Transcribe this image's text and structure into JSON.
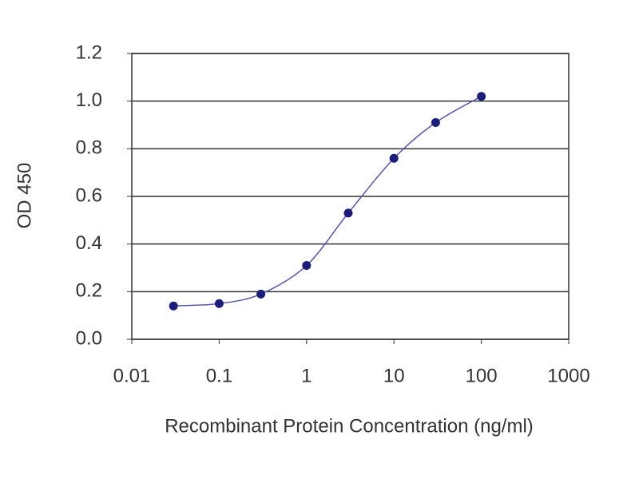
{
  "chart_data": {
    "type": "line",
    "xlabel": "Recombinant Protein Concentration (ng/ml)",
    "ylabel": "OD 450",
    "x": [
      0.03,
      0.1,
      0.3,
      1,
      3,
      10,
      30,
      100
    ],
    "series": [
      {
        "color": "#1c1c7a",
        "values": [
          0.14,
          0.15,
          0.19,
          0.31,
          0.53,
          0.76,
          0.91,
          1.02
        ]
      }
    ],
    "xscale": "log",
    "xlim": [
      0.01,
      1000
    ],
    "xticks": [
      0.01,
      0.1,
      1,
      10,
      100,
      1000
    ],
    "ylim": [
      0,
      1.2
    ],
    "yticks": [
      {
        "value": 0,
        "label": "0.0"
      },
      0.2,
      0.4,
      0.6,
      0.8,
      {
        "value": 1,
        "label": "1.0"
      },
      1.2
    ],
    "grid": true
  }
}
